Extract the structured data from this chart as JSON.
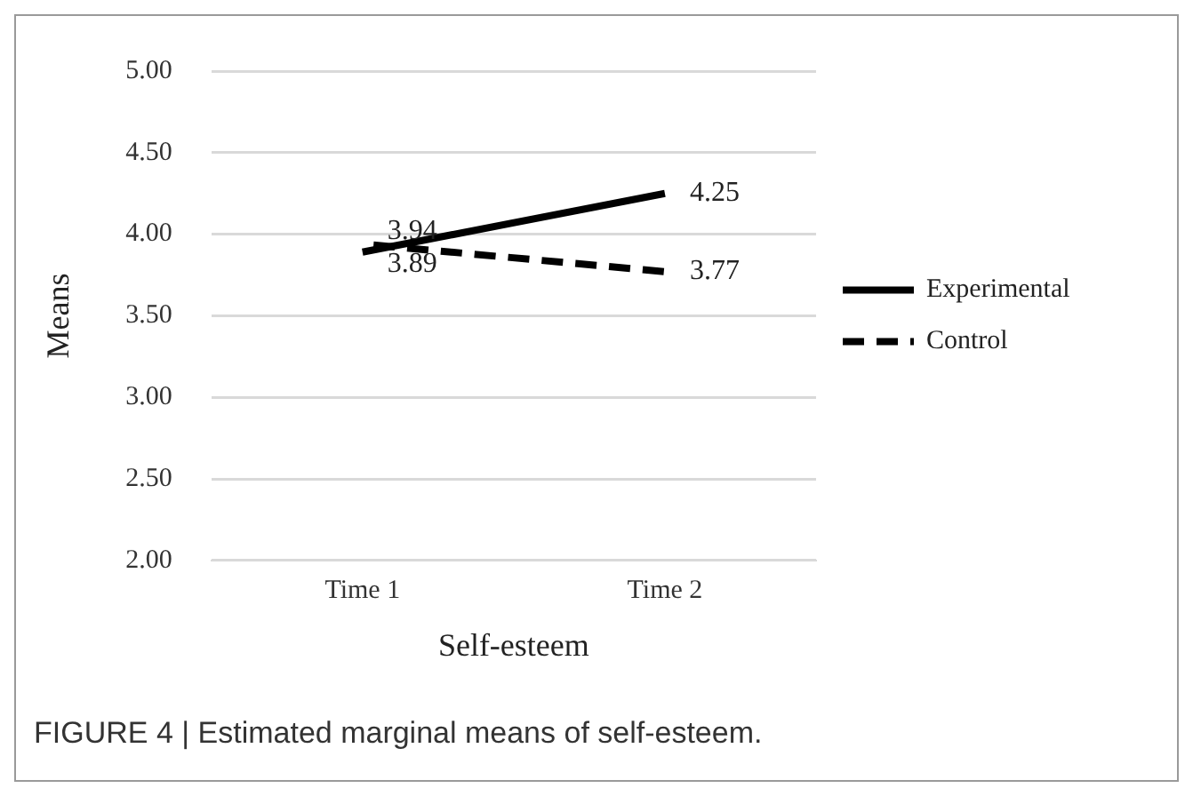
{
  "chart_data": {
    "type": "line",
    "xlabel": "Self-esteem",
    "ylabel": "Means",
    "categories": [
      "Time 1",
      "Time 2"
    ],
    "series": [
      {
        "name": "Experimental",
        "color": "#000000",
        "values": [
          3.89,
          4.25
        ],
        "line_style": "solid"
      },
      {
        "name": "Control",
        "color": "#000000",
        "values": [
          3.94,
          3.77
        ],
        "line_style": "dashed"
      }
    ],
    "ylim": [
      2,
      5
    ],
    "yticks": [
      {
        "value": 2,
        "label": "2.00"
      },
      {
        "value": 2.5,
        "label": "2.50"
      },
      {
        "value": 3,
        "label": "3.00"
      },
      {
        "value": 3.5,
        "label": "3.50"
      },
      {
        "value": 4,
        "label": "4.00"
      },
      {
        "value": 4.5,
        "label": "4.50"
      },
      {
        "value": 5,
        "label": "5.00"
      }
    ],
    "grid": "y",
    "legend": "right",
    "marker": "none",
    "data_labels": true,
    "annotations": [
      "FIGURE 4 | Estimated marginal means of self-esteem."
    ]
  }
}
